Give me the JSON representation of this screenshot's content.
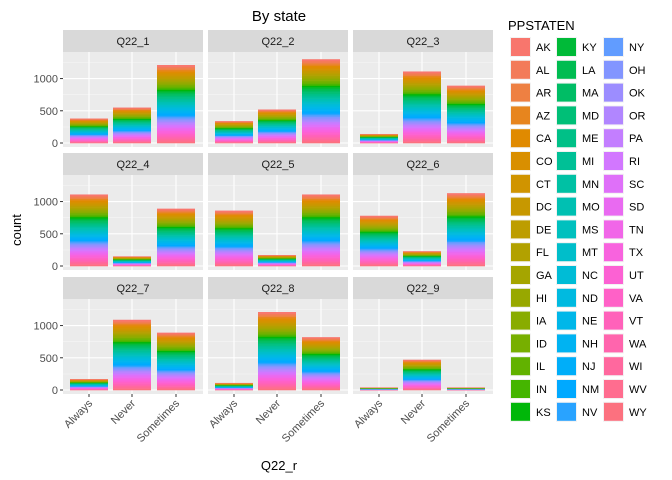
{
  "chart_data": {
    "type": "bar",
    "stacked": true,
    "title": "By state",
    "xlabel": "Q22_r",
    "ylabel": "count",
    "categories": [
      "Always",
      "Never",
      "Sometimes"
    ],
    "ylim": [
      0,
      1350
    ],
    "yticks": [
      "0",
      "500",
      "1000"
    ],
    "ytick_values": [
      0,
      500,
      1000
    ],
    "grid": true,
    "facets": [
      {
        "label": "Q22_1",
        "values": [
          380,
          550,
          1210
        ]
      },
      {
        "label": "Q22_2",
        "values": [
          340,
          520,
          1300
        ]
      },
      {
        "label": "Q22_3",
        "values": [
          140,
          1110,
          890
        ]
      },
      {
        "label": "Q22_4",
        "values": [
          1110,
          150,
          890
        ]
      },
      {
        "label": "Q22_5",
        "values": [
          860,
          170,
          1110
        ]
      },
      {
        "label": "Q22_6",
        "values": [
          780,
          230,
          1130
        ]
      },
      {
        "label": "Q22_7",
        "values": [
          170,
          1090,
          890
        ]
      },
      {
        "label": "Q22_8",
        "values": [
          110,
          1210,
          820
        ]
      },
      {
        "label": "Q22_9",
        "values": [
          40,
          470,
          40
        ]
      }
    ],
    "legend": {
      "title": "PPSTATEN",
      "placement": "right",
      "entries": [
        "AK",
        "AL",
        "AR",
        "AZ",
        "CA",
        "CO",
        "CT",
        "DC",
        "DE",
        "FL",
        "GA",
        "HI",
        "IA",
        "ID",
        "IL",
        "IN",
        "KS",
        "KY",
        "LA",
        "MA",
        "MD",
        "ME",
        "MI",
        "MN",
        "MO",
        "MS",
        "MT",
        "NC",
        "ND",
        "NE",
        "NH",
        "NJ",
        "NM",
        "NV",
        "NY",
        "OH",
        "OK",
        "OR",
        "PA",
        "RI",
        "SC",
        "SD",
        "TN",
        "TX",
        "UT",
        "VA",
        "VT",
        "WA",
        "WI",
        "WV",
        "WY"
      ]
    }
  }
}
